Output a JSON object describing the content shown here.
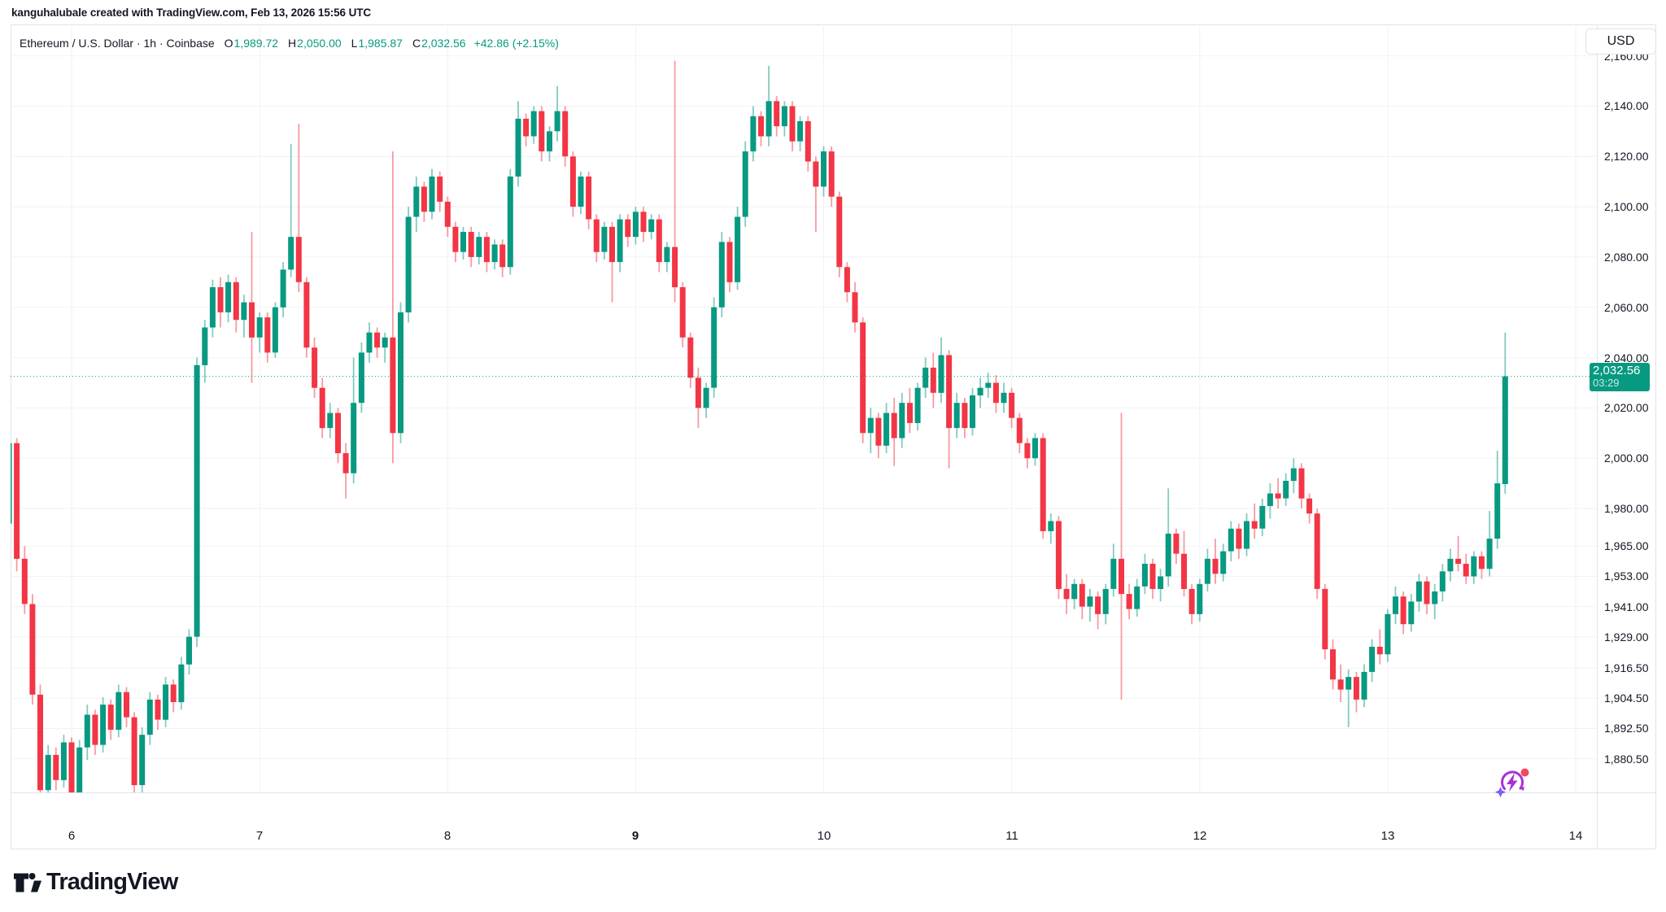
{
  "attribution": "kanguhalubale created with TradingView.com, Feb 13, 2026 15:56 UTC",
  "legend": {
    "title": "Ethereum / U.S. Dollar · 1h · Coinbase",
    "o_label": "O",
    "o_value": "1,989.72",
    "h_label": "H",
    "h_value": "2,050.00",
    "l_label": "L",
    "l_value": "1,985.87",
    "c_label": "C",
    "c_value": "2,032.56",
    "change": "+42.86 (+2.15%)"
  },
  "price_axis": {
    "currency_button": "USD",
    "last_price_text": "2,032.56",
    "countdown": "03:29",
    "labels": [
      {
        "value": 2160,
        "text": "2,160.00"
      },
      {
        "value": 2140,
        "text": "2,140.00"
      },
      {
        "value": 2120,
        "text": "2,120.00"
      },
      {
        "value": 2100,
        "text": "2,100.00"
      },
      {
        "value": 2080,
        "text": "2,080.00"
      },
      {
        "value": 2060,
        "text": "2,060.00"
      },
      {
        "value": 2040,
        "text": "2,040.00"
      },
      {
        "value": 2020,
        "text": "2,020.00"
      },
      {
        "value": 2000,
        "text": "2,000.00"
      },
      {
        "value": 1980,
        "text": "1,980.00"
      },
      {
        "value": 1965,
        "text": "1,965.00"
      },
      {
        "value": 1953,
        "text": "1,953.00"
      },
      {
        "value": 1941,
        "text": "1,941.00"
      },
      {
        "value": 1929,
        "text": "1,929.00"
      },
      {
        "value": 1916.5,
        "text": "1,916.50"
      },
      {
        "value": 1904.5,
        "text": "1,904.50"
      },
      {
        "value": 1892.5,
        "text": "1,892.50"
      },
      {
        "value": 1880.5,
        "text": "1,880.50"
      }
    ]
  },
  "footer": {
    "logo_text": "TradingView"
  },
  "colors": {
    "up": "#089981",
    "down": "#f23645",
    "grid": "#f0f2f6",
    "border": "#e0e3eb",
    "text": "#131722",
    "badge_bg": "#089981",
    "spark_purple": "#a832d4",
    "spark_violet": "#7c5cfa",
    "spark_red": "#f6465d"
  },
  "chart_data": {
    "type": "candlestick",
    "title": "Ethereum / U.S. Dollar",
    "interval": "1h",
    "exchange": "Coinbase",
    "price_line": 2032.56,
    "visible_price_range": [
      1867.1,
      2172.5
    ],
    "legend_position": "top-left",
    "grid": true,
    "day_ticks": [
      {
        "label": "6",
        "candle_index": 8,
        "bold": false
      },
      {
        "label": "7",
        "candle_index": 32,
        "bold": false
      },
      {
        "label": "8",
        "candle_index": 56,
        "bold": false
      },
      {
        "label": "9",
        "candle_index": 80,
        "bold": true
      },
      {
        "label": "10",
        "candle_index": 104,
        "bold": false
      },
      {
        "label": "11",
        "candle_index": 128,
        "bold": false
      },
      {
        "label": "12",
        "candle_index": 152,
        "bold": false
      },
      {
        "label": "13",
        "candle_index": 176,
        "bold": false
      },
      {
        "label": "14",
        "candle_index": 200,
        "bold": false
      }
    ],
    "candles_ohlc": [
      [
        1974,
        2008,
        1969,
        2006
      ],
      [
        2006,
        2008,
        1955,
        1960
      ],
      [
        1960,
        1965,
        1938,
        1942
      ],
      [
        1942,
        1946,
        1902,
        1906
      ],
      [
        1906,
        1910,
        1864,
        1868
      ],
      [
        1868,
        1886,
        1862,
        1882
      ],
      [
        1882,
        1885,
        1868,
        1872
      ],
      [
        1872,
        1890,
        1869,
        1887
      ],
      [
        1887,
        1889,
        1864,
        1867
      ],
      [
        1867,
        1888,
        1862,
        1885
      ],
      [
        1885,
        1902,
        1880,
        1898
      ],
      [
        1898,
        1900,
        1882,
        1886
      ],
      [
        1886,
        1905,
        1883,
        1902
      ],
      [
        1902,
        1904,
        1888,
        1892
      ],
      [
        1892,
        1910,
        1889,
        1907
      ],
      [
        1907,
        1909,
        1893,
        1897
      ],
      [
        1897,
        1899,
        1866,
        1870
      ],
      [
        1870,
        1893,
        1864,
        1890
      ],
      [
        1890,
        1907,
        1886,
        1904
      ],
      [
        1904,
        1906,
        1892,
        1896
      ],
      [
        1896,
        1913,
        1893,
        1910
      ],
      [
        1910,
        1912,
        1899,
        1903
      ],
      [
        1903,
        1921,
        1900,
        1918
      ],
      [
        1918,
        1932,
        1914,
        1929
      ],
      [
        1929,
        2040,
        1925,
        2037
      ],
      [
        2037,
        2055,
        2030,
        2052
      ],
      [
        2052,
        2071,
        2048,
        2068
      ],
      [
        2068,
        2072,
        2052,
        2058
      ],
      [
        2058,
        2073,
        2054,
        2070
      ],
      [
        2070,
        2072,
        2050,
        2055
      ],
      [
        2055,
        2065,
        2048,
        2062
      ],
      [
        2062,
        2090,
        2030,
        2048
      ],
      [
        2048,
        2058,
        2042,
        2056
      ],
      [
        2056,
        2058,
        2038,
        2042
      ],
      [
        2042,
        2062,
        2040,
        2060
      ],
      [
        2060,
        2078,
        2056,
        2075
      ],
      [
        2075,
        2125,
        2072,
        2088
      ],
      [
        2088,
        2133,
        2066,
        2070
      ],
      [
        2070,
        2072,
        2040,
        2044
      ],
      [
        2044,
        2048,
        2024,
        2028
      ],
      [
        2028,
        2032,
        2008,
        2012
      ],
      [
        2012,
        2022,
        2008,
        2018
      ],
      [
        2018,
        2020,
        1998,
        2002
      ],
      [
        2002,
        2006,
        1984,
        1994
      ],
      [
        1994,
        2040,
        1990,
        2022
      ],
      [
        2022,
        2046,
        2018,
        2042
      ],
      [
        2042,
        2054,
        2038,
        2050
      ],
      [
        2050,
        2052,
        2040,
        2044
      ],
      [
        2044,
        2050,
        2038,
        2048
      ],
      [
        2048,
        2122,
        1998,
        2010
      ],
      [
        2010,
        2062,
        2006,
        2058
      ],
      [
        2058,
        2100,
        2054,
        2096
      ],
      [
        2096,
        2112,
        2090,
        2108
      ],
      [
        2108,
        2110,
        2094,
        2098
      ],
      [
        2098,
        2115,
        2095,
        2112
      ],
      [
        2112,
        2114,
        2098,
        2102
      ],
      [
        2102,
        2104,
        2088,
        2092
      ],
      [
        2092,
        2094,
        2078,
        2082
      ],
      [
        2082,
        2092,
        2079,
        2090
      ],
      [
        2090,
        2092,
        2076,
        2080
      ],
      [
        2080,
        2090,
        2077,
        2088
      ],
      [
        2088,
        2090,
        2074,
        2078
      ],
      [
        2078,
        2087,
        2075,
        2085
      ],
      [
        2085,
        2087,
        2072,
        2076
      ],
      [
        2076,
        2115,
        2073,
        2112
      ],
      [
        2112,
        2142,
        2108,
        2135
      ],
      [
        2135,
        2137,
        2124,
        2128
      ],
      [
        2128,
        2140,
        2125,
        2138
      ],
      [
        2138,
        2140,
        2118,
        2122
      ],
      [
        2122,
        2132,
        2118,
        2130
      ],
      [
        2130,
        2148,
        2126,
        2138
      ],
      [
        2138,
        2140,
        2116,
        2120
      ],
      [
        2120,
        2122,
        2096,
        2100
      ],
      [
        2100,
        2114,
        2097,
        2112
      ],
      [
        2112,
        2114,
        2091,
        2095
      ],
      [
        2095,
        2097,
        2078,
        2082
      ],
      [
        2082,
        2094,
        2079,
        2092
      ],
      [
        2092,
        2094,
        2062,
        2078
      ],
      [
        2078,
        2097,
        2074,
        2095
      ],
      [
        2095,
        2097,
        2084,
        2088
      ],
      [
        2088,
        2100,
        2085,
        2098
      ],
      [
        2098,
        2100,
        2086,
        2090
      ],
      [
        2090,
        2097,
        2087,
        2095
      ],
      [
        2095,
        2097,
        2074,
        2078
      ],
      [
        2078,
        2086,
        2074,
        2084
      ],
      [
        2084,
        2158,
        2062,
        2068
      ],
      [
        2068,
        2070,
        2044,
        2048
      ],
      [
        2048,
        2050,
        2028,
        2032
      ],
      [
        2032,
        2036,
        2012,
        2020
      ],
      [
        2020,
        2030,
        2016,
        2028
      ],
      [
        2028,
        2064,
        2024,
        2060
      ],
      [
        2060,
        2090,
        2056,
        2086
      ],
      [
        2086,
        2088,
        2066,
        2070
      ],
      [
        2070,
        2100,
        2067,
        2096
      ],
      [
        2096,
        2126,
        2092,
        2122
      ],
      [
        2122,
        2140,
        2118,
        2136
      ],
      [
        2136,
        2138,
        2124,
        2128
      ],
      [
        2128,
        2156,
        2124,
        2142
      ],
      [
        2142,
        2144,
        2128,
        2132
      ],
      [
        2132,
        2142,
        2128,
        2140
      ],
      [
        2140,
        2142,
        2122,
        2126
      ],
      [
        2126,
        2136,
        2122,
        2134
      ],
      [
        2134,
        2136,
        2114,
        2118
      ],
      [
        2118,
        2120,
        2090,
        2108
      ],
      [
        2108,
        2124,
        2104,
        2122
      ],
      [
        2122,
        2124,
        2100,
        2104
      ],
      [
        2104,
        2106,
        2072,
        2076
      ],
      [
        2076,
        2078,
        2062,
        2066
      ],
      [
        2066,
        2070,
        2050,
        2054
      ],
      [
        2054,
        2056,
        2006,
        2010
      ],
      [
        2010,
        2020,
        2002,
        2016
      ],
      [
        2016,
        2018,
        2000,
        2005
      ],
      [
        2005,
        2022,
        2002,
        2018
      ],
      [
        2018,
        2024,
        1997,
        2008
      ],
      [
        2008,
        2026,
        2004,
        2022
      ],
      [
        2022,
        2028,
        2010,
        2014
      ],
      [
        2014,
        2030,
        2011,
        2028
      ],
      [
        2028,
        2040,
        2024,
        2036
      ],
      [
        2036,
        2042,
        2020,
        2026
      ],
      [
        2026,
        2048,
        2022,
        2041
      ],
      [
        2041,
        2043,
        1996,
        2012
      ],
      [
        2012,
        2026,
        2008,
        2022
      ],
      [
        2022,
        2024,
        2008,
        2012
      ],
      [
        2012,
        2028,
        2009,
        2025
      ],
      [
        2025,
        2032,
        2020,
        2028
      ],
      [
        2028,
        2034,
        2024,
        2030
      ],
      [
        2030,
        2033,
        2018,
        2022
      ],
      [
        2022,
        2030,
        2018,
        2026
      ],
      [
        2026,
        2028,
        2012,
        2016
      ],
      [
        2016,
        2018,
        2002,
        2006
      ],
      [
        2006,
        2008,
        1996,
        2000
      ],
      [
        2000,
        2010,
        1997,
        2008
      ],
      [
        2008,
        2010,
        1968,
        1971
      ],
      [
        1971,
        1978,
        1966,
        1975
      ],
      [
        1975,
        1977,
        1944,
        1948
      ],
      [
        1948,
        1954,
        1938,
        1944
      ],
      [
        1944,
        1952,
        1940,
        1950
      ],
      [
        1950,
        1952,
        1936,
        1941
      ],
      [
        1941,
        1948,
        1935,
        1945
      ],
      [
        1945,
        1947,
        1932,
        1938
      ],
      [
        1938,
        1950,
        1934,
        1948
      ],
      [
        1948,
        1966,
        1945,
        1960
      ],
      [
        1960,
        2018,
        1904,
        1946
      ],
      [
        1946,
        1950,
        1936,
        1940
      ],
      [
        1940,
        1952,
        1937,
        1949
      ],
      [
        1949,
        1962,
        1946,
        1958
      ],
      [
        1958,
        1960,
        1944,
        1948
      ],
      [
        1948,
        1956,
        1943,
        1953
      ],
      [
        1953,
        1988,
        1949,
        1970
      ],
      [
        1970,
        1972,
        1958,
        1962
      ],
      [
        1962,
        1971,
        1945,
        1948
      ],
      [
        1948,
        1950,
        1934,
        1938
      ],
      [
        1938,
        1952,
        1935,
        1950
      ],
      [
        1950,
        1964,
        1947,
        1960
      ],
      [
        1960,
        1968,
        1950,
        1954
      ],
      [
        1954,
        1966,
        1951,
        1963
      ],
      [
        1963,
        1975,
        1959,
        1972
      ],
      [
        1972,
        1974,
        1960,
        1964
      ],
      [
        1964,
        1978,
        1961,
        1975
      ],
      [
        1975,
        1982,
        1968,
        1972
      ],
      [
        1972,
        1984,
        1969,
        1981
      ],
      [
        1981,
        1990,
        1976,
        1986
      ],
      [
        1986,
        1992,
        1980,
        1984
      ],
      [
        1984,
        1994,
        1981,
        1991
      ],
      [
        1991,
        2000,
        1986,
        1996
      ],
      [
        1996,
        1998,
        1980,
        1984
      ],
      [
        1984,
        1986,
        1974,
        1978
      ],
      [
        1978,
        1980,
        1944,
        1948
      ],
      [
        1948,
        1950,
        1920,
        1924
      ],
      [
        1924,
        1928,
        1908,
        1912
      ],
      [
        1912,
        1918,
        1903,
        1908
      ],
      [
        1908,
        1916,
        1893,
        1913
      ],
      [
        1913,
        1915,
        1899,
        1904
      ],
      [
        1904,
        1918,
        1901,
        1915
      ],
      [
        1915,
        1928,
        1911,
        1925
      ],
      [
        1925,
        1932,
        1918,
        1922
      ],
      [
        1922,
        1940,
        1919,
        1938
      ],
      [
        1938,
        1949,
        1934,
        1945
      ],
      [
        1945,
        1947,
        1930,
        1934
      ],
      [
        1934,
        1946,
        1931,
        1943
      ],
      [
        1943,
        1954,
        1939,
        1951
      ],
      [
        1951,
        1953,
        1938,
        1942
      ],
      [
        1942,
        1950,
        1936,
        1947
      ],
      [
        1947,
        1958,
        1943,
        1955
      ],
      [
        1955,
        1964,
        1951,
        1960
      ],
      [
        1960,
        1969,
        1955,
        1958
      ],
      [
        1958,
        1962,
        1950,
        1953
      ],
      [
        1953,
        1963,
        1950,
        1961
      ],
      [
        1961,
        1963,
        1952,
        1956
      ],
      [
        1956,
        1979,
        1953,
        1968
      ],
      [
        1968,
        2003,
        1964,
        1990
      ],
      [
        1989.72,
        2050,
        1985.87,
        2032.56
      ]
    ]
  }
}
